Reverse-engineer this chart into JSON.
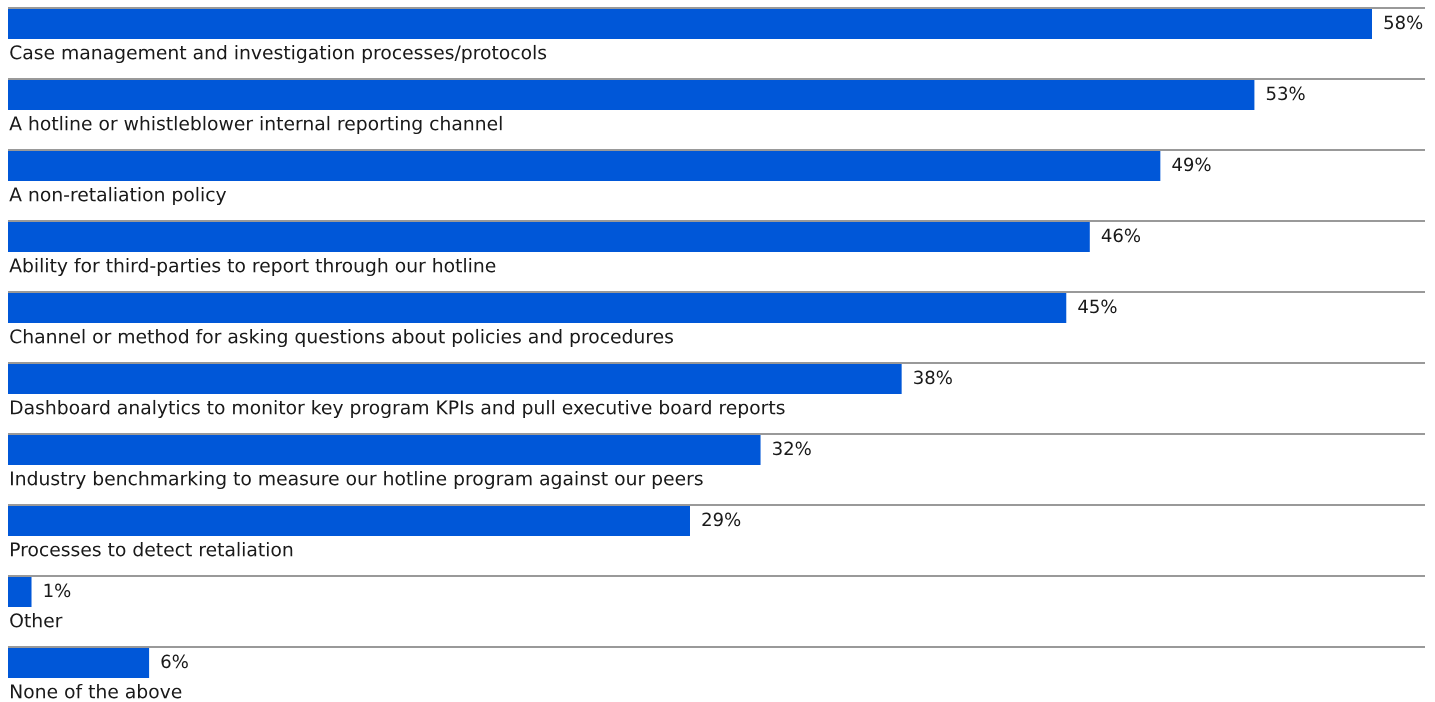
{
  "chart_data": {
    "type": "bar",
    "orientation": "horizontal",
    "categories": [
      "Case management and investigation processes/protocols",
      "A hotline or whistleblower internal reporting channel",
      "A non-retaliation policy",
      "Ability for third-parties to report through our hotline",
      "Channel or method for asking questions about policies and procedures",
      "Dashboard analytics to monitor key program KPIs and pull executive board reports",
      "Industry benchmarking to measure our hotline program against our peers",
      "Processes to detect retaliation",
      "Other",
      "None of the above"
    ],
    "values": [
      58,
      53,
      49,
      46,
      45,
      38,
      32,
      29,
      1,
      6
    ],
    "value_labels": [
      "58%",
      "53%",
      "49%",
      "46%",
      "45%",
      "38%",
      "32%",
      "29%",
      "1%",
      "6%"
    ],
    "color": "#0057d8",
    "grid": "y",
    "legend": false
  }
}
